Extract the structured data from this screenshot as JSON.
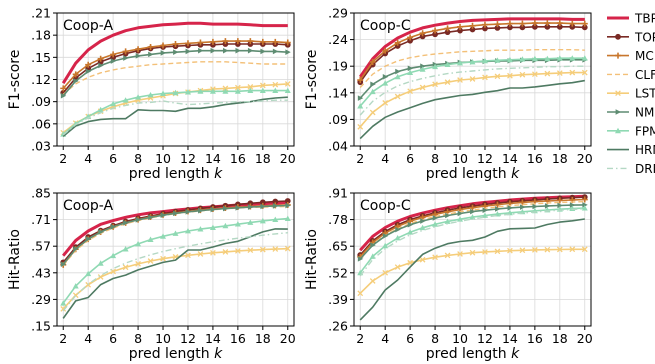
{
  "legend": [
    {
      "name": "TBP",
      "color": "#d6244a",
      "dash": "",
      "marker": "none",
      "width": 3
    },
    {
      "name": "TOP",
      "color": "#7a2a25",
      "dash": "",
      "marker": "circle",
      "width": 1.6
    },
    {
      "name": "MC",
      "color": "#c8762c",
      "dash": "",
      "marker": "plus",
      "width": 1.6
    },
    {
      "name": "CLF",
      "color": "#f3c078",
      "dash": "5,3",
      "marker": "none",
      "width": 1.4
    },
    {
      "name": "LST",
      "color": "#f5cd7a",
      "dash": "",
      "marker": "x",
      "width": 1.6
    },
    {
      "name": "NMF",
      "color": "#5e8c72",
      "dash": "",
      "marker": "tri-right",
      "width": 1.6
    },
    {
      "name": "FPM",
      "color": "#8fd9b3",
      "dash": "",
      "marker": "tri-up",
      "width": 1.6
    },
    {
      "name": "HRM",
      "color": "#4e7a62",
      "dash": "",
      "marker": "none",
      "width": 1.6
    },
    {
      "name": "DRM",
      "color": "#b4d8c4",
      "dash": "6,3,1.5,3",
      "marker": "none",
      "width": 1.4
    }
  ],
  "chart_data": [
    {
      "type": "line",
      "title": "Coop-A",
      "xlabel": "pred length k",
      "ylabel": "F1-score",
      "x": [
        2,
        3,
        4,
        5,
        6,
        7,
        8,
        9,
        10,
        11,
        12,
        13,
        14,
        15,
        16,
        17,
        18,
        19,
        20
      ],
      "xticks": [
        "2",
        "4",
        "6",
        "8",
        "10",
        "12",
        "14",
        "16",
        "18",
        "20"
      ],
      "yticks": [
        ".03",
        ".06",
        ".09",
        ".12",
        ".15",
        ".18",
        ".21"
      ],
      "ylim": [
        0.03,
        0.21
      ],
      "series": [
        {
          "name": "TBP",
          "values": [
            0.115,
            0.142,
            0.16,
            0.172,
            0.18,
            0.186,
            0.19,
            0.192,
            0.194,
            0.195,
            0.196,
            0.196,
            0.195,
            0.195,
            0.195,
            0.194,
            0.193,
            0.193,
            0.193
          ]
        },
        {
          "name": "TOP",
          "values": [
            0.102,
            0.122,
            0.135,
            0.144,
            0.15,
            0.155,
            0.159,
            0.162,
            0.164,
            0.165,
            0.166,
            0.167,
            0.167,
            0.168,
            0.168,
            0.168,
            0.168,
            0.168,
            0.167
          ]
        },
        {
          "name": "MC",
          "values": [
            0.108,
            0.127,
            0.14,
            0.148,
            0.154,
            0.158,
            0.161,
            0.164,
            0.166,
            0.168,
            0.169,
            0.17,
            0.171,
            0.172,
            0.172,
            0.172,
            0.171,
            0.171,
            0.17
          ]
        },
        {
          "name": "CLF",
          "values": [
            0.1,
            0.114,
            0.123,
            0.129,
            0.133,
            0.136,
            0.138,
            0.14,
            0.141,
            0.142,
            0.143,
            0.144,
            0.144,
            0.144,
            0.143,
            0.142,
            0.141,
            0.141,
            0.141
          ]
        },
        {
          "name": "LST",
          "values": [
            0.048,
            0.061,
            0.07,
            0.077,
            0.083,
            0.088,
            0.092,
            0.095,
            0.098,
            0.101,
            0.103,
            0.105,
            0.107,
            0.108,
            0.109,
            0.11,
            0.112,
            0.113,
            0.114
          ]
        },
        {
          "name": "NMF",
          "values": [
            0.098,
            0.118,
            0.131,
            0.139,
            0.145,
            0.149,
            0.152,
            0.154,
            0.156,
            0.157,
            0.158,
            0.159,
            0.159,
            0.159,
            0.159,
            0.159,
            0.158,
            0.158,
            0.157
          ]
        },
        {
          "name": "FPM",
          "values": [
            0.046,
            0.06,
            0.07,
            0.079,
            0.087,
            0.092,
            0.096,
            0.099,
            0.101,
            0.102,
            0.103,
            0.104,
            0.104,
            0.104,
            0.104,
            0.105,
            0.105,
            0.105,
            0.105
          ]
        },
        {
          "name": "HRM",
          "values": [
            0.043,
            0.057,
            0.063,
            0.066,
            0.067,
            0.067,
            0.079,
            0.078,
            0.078,
            0.077,
            0.081,
            0.081,
            0.083,
            0.086,
            0.088,
            0.09,
            0.093,
            0.095,
            0.096
          ]
        },
        {
          "name": "DRM",
          "values": [
            0.045,
            0.059,
            0.068,
            0.075,
            0.081,
            0.085,
            0.088,
            0.089,
            0.091,
            0.088,
            0.086,
            0.087,
            0.088,
            0.089,
            0.09,
            0.09,
            0.091,
            0.092,
            0.092
          ]
        }
      ]
    },
    {
      "type": "line",
      "title": "Coop-C",
      "xlabel": "pred length k",
      "ylabel": "F1-score",
      "x": [
        2,
        3,
        4,
        5,
        6,
        7,
        8,
        9,
        10,
        11,
        12,
        13,
        14,
        15,
        16,
        17,
        18,
        19,
        20
      ],
      "xticks": [
        "2",
        "4",
        "6",
        "8",
        "10",
        "12",
        "14",
        "16",
        "18",
        "20"
      ],
      "yticks": [
        ".04",
        ".09",
        ".14",
        ".19",
        ".24",
        ".29"
      ],
      "ylim": [
        0.04,
        0.29
      ],
      "series": [
        {
          "name": "TBP",
          "values": [
            0.17,
            0.204,
            0.227,
            0.243,
            0.254,
            0.262,
            0.267,
            0.271,
            0.274,
            0.276,
            0.277,
            0.278,
            0.279,
            0.279,
            0.279,
            0.279,
            0.279,
            0.278,
            0.278
          ]
        },
        {
          "name": "TOP",
          "values": [
            0.16,
            0.193,
            0.214,
            0.228,
            0.238,
            0.246,
            0.25,
            0.254,
            0.257,
            0.259,
            0.261,
            0.262,
            0.263,
            0.263,
            0.264,
            0.264,
            0.264,
            0.264,
            0.263
          ]
        },
        {
          "name": "MC",
          "values": [
            0.164,
            0.198,
            0.219,
            0.234,
            0.244,
            0.252,
            0.257,
            0.261,
            0.264,
            0.266,
            0.268,
            0.269,
            0.27,
            0.27,
            0.271,
            0.271,
            0.271,
            0.27,
            0.27
          ]
        },
        {
          "name": "CLF",
          "values": [
            0.15,
            0.175,
            0.19,
            0.2,
            0.206,
            0.21,
            0.213,
            0.215,
            0.217,
            0.218,
            0.219,
            0.22,
            0.22,
            0.22,
            0.221,
            0.221,
            0.221,
            0.221,
            0.22
          ]
        },
        {
          "name": "LST",
          "values": [
            0.076,
            0.103,
            0.121,
            0.133,
            0.143,
            0.15,
            0.156,
            0.16,
            0.164,
            0.166,
            0.169,
            0.171,
            0.172,
            0.174,
            0.175,
            0.176,
            0.177,
            0.178,
            0.178
          ]
        },
        {
          "name": "NMF",
          "values": [
            0.13,
            0.156,
            0.17,
            0.18,
            0.186,
            0.19,
            0.193,
            0.195,
            0.197,
            0.198,
            0.199,
            0.2,
            0.2,
            0.201,
            0.201,
            0.201,
            0.202,
            0.202,
            0.202
          ]
        },
        {
          "name": "FPM",
          "values": [
            0.115,
            0.142,
            0.158,
            0.17,
            0.178,
            0.184,
            0.189,
            0.193,
            0.196,
            0.198,
            0.2,
            0.201,
            0.202,
            0.203,
            0.204,
            0.204,
            0.205,
            0.205,
            0.205
          ]
        },
        {
          "name": "HRM",
          "values": [
            0.054,
            0.077,
            0.094,
            0.104,
            0.112,
            0.12,
            0.127,
            0.131,
            0.135,
            0.137,
            0.141,
            0.144,
            0.149,
            0.149,
            0.151,
            0.154,
            0.157,
            0.159,
            0.163
          ]
        },
        {
          "name": "DRM",
          "values": [
            0.098,
            0.124,
            0.141,
            0.153,
            0.161,
            0.167,
            0.172,
            0.176,
            0.179,
            0.181,
            0.183,
            0.185,
            0.186,
            0.187,
            0.188,
            0.189,
            0.189,
            0.19,
            0.19
          ]
        }
      ]
    },
    {
      "type": "line",
      "title": "Coop-A",
      "xlabel": "pred length k",
      "ylabel": "Hit-Ratio",
      "x": [
        2,
        3,
        4,
        5,
        6,
        7,
        8,
        9,
        10,
        11,
        12,
        13,
        14,
        15,
        16,
        17,
        18,
        19,
        20
      ],
      "xticks": [
        "2",
        "4",
        "6",
        "8",
        "10",
        "12",
        "14",
        "16",
        "18",
        "20"
      ],
      "yticks": [
        ".15",
        ".29",
        ".43",
        ".57",
        ".71",
        ".85"
      ],
      "ylim": [
        0.15,
        0.85
      ],
      "series": [
        {
          "name": "TBP",
          "values": [
            0.52,
            0.6,
            0.65,
            0.685,
            0.705,
            0.722,
            0.735,
            0.745,
            0.752,
            0.76,
            0.766,
            0.772,
            0.777,
            0.782,
            0.787,
            0.791,
            0.794,
            0.797,
            0.8
          ]
        },
        {
          "name": "TOP",
          "values": [
            0.485,
            0.565,
            0.618,
            0.652,
            0.678,
            0.7,
            0.716,
            0.729,
            0.741,
            0.752,
            0.761,
            0.769,
            0.776,
            0.783,
            0.79,
            0.796,
            0.801,
            0.805,
            0.808
          ]
        },
        {
          "name": "MC",
          "values": [
            0.472,
            0.554,
            0.607,
            0.645,
            0.672,
            0.693,
            0.71,
            0.724,
            0.735,
            0.745,
            0.753,
            0.76,
            0.766,
            0.771,
            0.776,
            0.779,
            0.782,
            0.785,
            0.787
          ]
        },
        {
          "name": "CLF",
          "values": [
            0.468,
            0.548,
            0.6,
            0.638,
            0.666,
            0.688,
            0.705,
            0.719,
            0.731,
            0.741,
            0.749,
            0.756,
            0.762,
            0.767,
            0.771,
            0.774,
            0.776,
            0.778,
            0.779
          ]
        },
        {
          "name": "LST",
          "values": [
            0.24,
            0.312,
            0.367,
            0.408,
            0.437,
            0.459,
            0.477,
            0.492,
            0.504,
            0.514,
            0.522,
            0.529,
            0.535,
            0.54,
            0.545,
            0.549,
            0.552,
            0.555,
            0.557
          ]
        },
        {
          "name": "NMF",
          "values": [
            0.475,
            0.556,
            0.608,
            0.645,
            0.672,
            0.693,
            0.709,
            0.722,
            0.733,
            0.743,
            0.751,
            0.757,
            0.763,
            0.768,
            0.772,
            0.776,
            0.779,
            0.782,
            0.784
          ]
        },
        {
          "name": "FPM",
          "values": [
            0.27,
            0.36,
            0.425,
            0.48,
            0.52,
            0.555,
            0.582,
            0.605,
            0.622,
            0.637,
            0.65,
            0.66,
            0.668,
            0.677,
            0.686,
            0.695,
            0.703,
            0.71,
            0.715
          ]
        },
        {
          "name": "HRM",
          "values": [
            0.19,
            0.282,
            0.3,
            0.368,
            0.4,
            0.418,
            0.445,
            0.465,
            0.485,
            0.497,
            0.55,
            0.55,
            0.566,
            0.584,
            0.596,
            0.62,
            0.645,
            0.661,
            0.66
          ]
        },
        {
          "name": "DRM",
          "values": [
            0.23,
            0.31,
            0.37,
            0.416,
            0.452,
            0.481,
            0.505,
            0.525,
            0.542,
            0.557,
            0.57,
            0.582,
            0.593,
            0.603,
            0.612,
            0.62,
            0.628,
            0.635,
            0.641
          ]
        }
      ]
    },
    {
      "type": "line",
      "title": "Coop-C",
      "xlabel": "pred length k",
      "ylabel": "Hit-Ratio",
      "x": [
        2,
        3,
        4,
        5,
        6,
        7,
        8,
        9,
        10,
        11,
        12,
        13,
        14,
        15,
        16,
        17,
        18,
        19,
        20
      ],
      "xticks": [
        "2",
        "4",
        "6",
        "8",
        "10",
        "12",
        "14",
        "16",
        "18",
        "20"
      ],
      "yticks": [
        ".26",
        ".39",
        ".52",
        ".65",
        ".78",
        ".91"
      ],
      "ylim": [
        0.26,
        0.91
      ],
      "series": [
        {
          "name": "TBP",
          "values": [
            0.63,
            0.698,
            0.741,
            0.772,
            0.795,
            0.812,
            0.826,
            0.838,
            0.848,
            0.857,
            0.864,
            0.87,
            0.876,
            0.88,
            0.884,
            0.887,
            0.89,
            0.892,
            0.894
          ]
        },
        {
          "name": "TOP",
          "values": [
            0.607,
            0.676,
            0.722,
            0.755,
            0.78,
            0.798,
            0.813,
            0.826,
            0.837,
            0.846,
            0.854,
            0.861,
            0.867,
            0.872,
            0.876,
            0.88,
            0.884,
            0.887,
            0.89
          ]
        },
        {
          "name": "MC",
          "values": [
            0.598,
            0.668,
            0.714,
            0.747,
            0.772,
            0.791,
            0.806,
            0.818,
            0.829,
            0.838,
            0.846,
            0.853,
            0.859,
            0.864,
            0.868,
            0.871,
            0.874,
            0.876,
            0.878
          ]
        },
        {
          "name": "CLF",
          "values": [
            0.59,
            0.658,
            0.704,
            0.736,
            0.761,
            0.78,
            0.795,
            0.807,
            0.818,
            0.827,
            0.835,
            0.842,
            0.848,
            0.853,
            0.857,
            0.861,
            0.864,
            0.866,
            0.868
          ]
        },
        {
          "name": "LST",
          "values": [
            0.42,
            0.48,
            0.52,
            0.548,
            0.569,
            0.584,
            0.596,
            0.605,
            0.612,
            0.618,
            0.622,
            0.625,
            0.628,
            0.63,
            0.632,
            0.633,
            0.634,
            0.635,
            0.635
          ]
        },
        {
          "name": "NMF",
          "values": [
            0.588,
            0.655,
            0.7,
            0.731,
            0.755,
            0.773,
            0.788,
            0.8,
            0.81,
            0.819,
            0.826,
            0.832,
            0.837,
            0.841,
            0.844,
            0.847,
            0.849,
            0.851,
            0.852
          ]
        },
        {
          "name": "FPM",
          "values": [
            0.52,
            0.6,
            0.652,
            0.69,
            0.718,
            0.74,
            0.757,
            0.771,
            0.782,
            0.792,
            0.8,
            0.807,
            0.813,
            0.818,
            0.823,
            0.827,
            0.831,
            0.834,
            0.836
          ]
        },
        {
          "name": "HRM",
          "values": [
            0.29,
            0.352,
            0.436,
            0.485,
            0.548,
            0.61,
            0.64,
            0.662,
            0.673,
            0.679,
            0.695,
            0.723,
            0.735,
            0.737,
            0.739,
            0.756,
            0.768,
            0.774,
            0.783
          ]
        },
        {
          "name": "DRM",
          "values": [
            0.505,
            0.585,
            0.638,
            0.676,
            0.705,
            0.727,
            0.745,
            0.76,
            0.772,
            0.783,
            0.792,
            0.8,
            0.806,
            0.812,
            0.817,
            0.822,
            0.826,
            0.83,
            0.833
          ]
        }
      ]
    }
  ]
}
